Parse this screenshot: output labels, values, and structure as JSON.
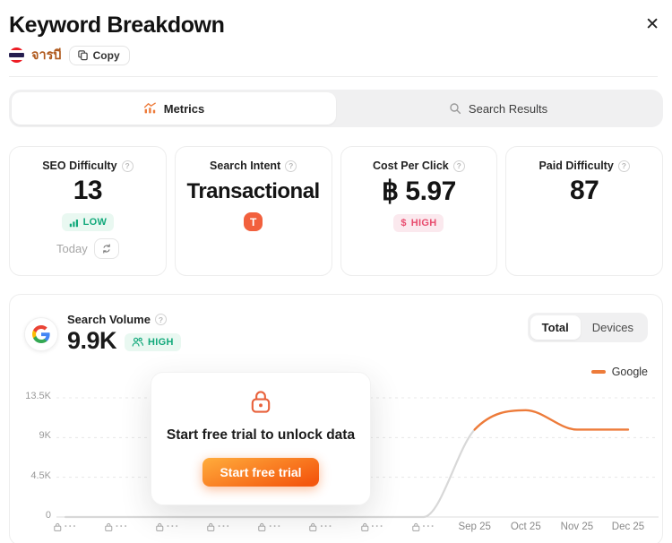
{
  "header": {
    "title": "Keyword Breakdown",
    "keyword": "จารบี",
    "copy_label": "Copy",
    "close_label": "✕"
  },
  "tabs": {
    "metrics": "Metrics",
    "search_results": "Search Results"
  },
  "help_icon": "?",
  "cards": {
    "seo": {
      "label": "SEO Difficulty",
      "value": "13",
      "badge": "LOW",
      "footer_text": "Today"
    },
    "intent": {
      "label": "Search Intent",
      "value": "Transactional",
      "badge": "T"
    },
    "cpc": {
      "label": "Cost Per Click",
      "value": "฿ 5.97",
      "badge": "HIGH",
      "badge_icon": "$"
    },
    "paid": {
      "label": "Paid Difficulty",
      "value": "87"
    }
  },
  "volume": {
    "label": "Search Volume",
    "value": "9.9K",
    "badge": "HIGH",
    "toggle": {
      "total": "Total",
      "devices": "Devices",
      "active": "Total"
    },
    "legend": "Google"
  },
  "overlay": {
    "title": "Start free trial to unlock data",
    "button_label": "Start free trial"
  },
  "colors": {
    "accent": "#ED7B3A",
    "green": "#12A97B",
    "green_bg": "#E9F8F1",
    "pink": "#E84C6E",
    "pink_bg": "#FBE9EE",
    "intent_badge": "#F2603D",
    "keyword": "#B05A1E"
  },
  "chart_data": {
    "type": "line",
    "title": "Search Volume",
    "x": [
      "",
      "",
      "",
      "",
      "",
      "",
      "",
      "",
      "Sep 25",
      "Oct 25",
      "Nov 25",
      "Dec 25"
    ],
    "locked_count": 8,
    "locked_tick_text": "···",
    "series": [
      {
        "name": "Google",
        "values": [
          0,
          0,
          0,
          0,
          0,
          0,
          0,
          0,
          9900,
          12100,
          9900,
          9900
        ]
      }
    ],
    "yticks": [
      {
        "label": "13.5K",
        "value": 13500
      },
      {
        "label": "9K",
        "value": 9000
      },
      {
        "label": "4.5K",
        "value": 4500
      },
      {
        "label": "0",
        "value": 0
      }
    ],
    "ylim": [
      0,
      14000
    ],
    "xlabel": "",
    "ylabel": "",
    "grid": "dashed-horizontal",
    "legend_position": "top-right",
    "colors": {
      "series": "#ED7B3A",
      "locked_segment": "#D8D8D8"
    }
  }
}
